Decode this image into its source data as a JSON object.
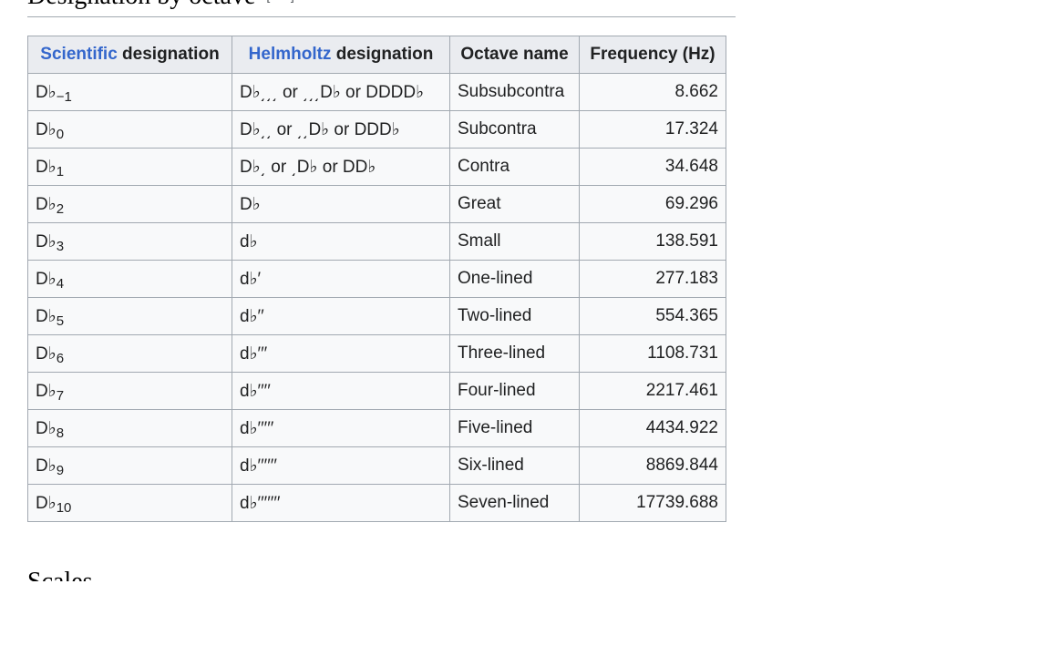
{
  "section": {
    "title": "Designation by octave",
    "edit_label": "edit",
    "edit_brackets": [
      "[",
      "]"
    ]
  },
  "table": {
    "headers": [
      {
        "link": "Scientific",
        "rest": " designation"
      },
      {
        "link": "Helmholtz",
        "rest": " designation"
      },
      {
        "text": "Octave name"
      },
      {
        "text": "Frequency (Hz)"
      }
    ],
    "rows": [
      {
        "sci_base": "D♭",
        "sci_sub": "−1",
        "helm": "D♭͵͵͵ or ͵͵͵D♭ or DDDD♭",
        "octave": "Subsubcontra",
        "freq": "8.662"
      },
      {
        "sci_base": "D♭",
        "sci_sub": "0",
        "helm": "D♭͵͵ or ͵͵D♭ or DDD♭",
        "octave": "Subcontra",
        "freq": "17.324"
      },
      {
        "sci_base": "D♭",
        "sci_sub": "1",
        "helm": "D♭͵ or ͵D♭ or DD♭",
        "octave": "Contra",
        "freq": "34.648"
      },
      {
        "sci_base": "D♭",
        "sci_sub": "2",
        "helm": "D♭",
        "octave": "Great",
        "freq": "69.296"
      },
      {
        "sci_base": "D♭",
        "sci_sub": "3",
        "helm": "d♭",
        "octave": "Small",
        "freq": "138.591"
      },
      {
        "sci_base": "D♭",
        "sci_sub": "4",
        "helm": "d♭′",
        "octave": "One-lined",
        "freq": "277.183"
      },
      {
        "sci_base": "D♭",
        "sci_sub": "5",
        "helm": "d♭′′",
        "octave": "Two-lined",
        "freq": "554.365"
      },
      {
        "sci_base": "D♭",
        "sci_sub": "6",
        "helm": "d♭′′′",
        "octave": "Three-lined",
        "freq": "1108.731"
      },
      {
        "sci_base": "D♭",
        "sci_sub": "7",
        "helm": "d♭′′′′",
        "octave": "Four-lined",
        "freq": "2217.461"
      },
      {
        "sci_base": "D♭",
        "sci_sub": "8",
        "helm": "d♭′′′′′",
        "octave": "Five-lined",
        "freq": "4434.922"
      },
      {
        "sci_base": "D♭",
        "sci_sub": "9",
        "helm": "d♭′′′′′′",
        "octave": "Six-lined",
        "freq": "8869.844"
      },
      {
        "sci_base": "D♭",
        "sci_sub": "10",
        "helm": "d♭′′′′′′′",
        "octave": "Seven-lined",
        "freq": "17739.688"
      }
    ]
  },
  "next_section": {
    "title": "Scales"
  }
}
